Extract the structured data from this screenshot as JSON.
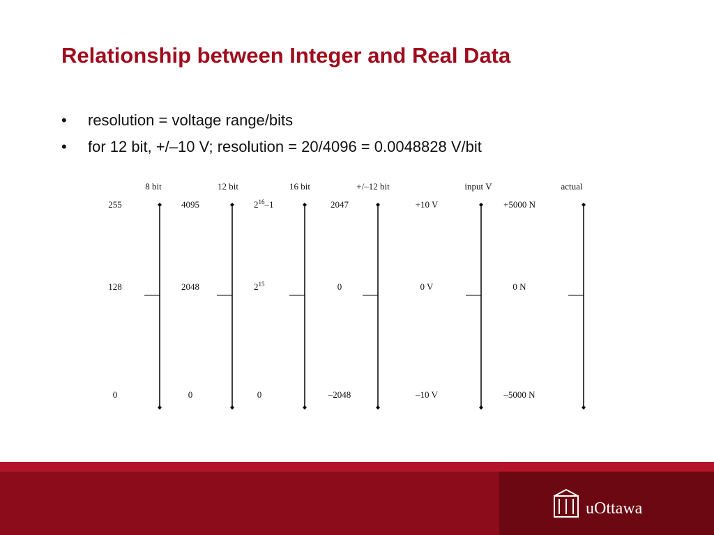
{
  "title": "Relationship between Integer and Real Data",
  "bullets": [
    "resolution = voltage range/bits",
    "for 12 bit, +/–10 V; resolution = 20/4096 = 0.0048828 V/bit"
  ],
  "diagram": {
    "columns": [
      {
        "header": "8 bit",
        "top": "255",
        "mid": "128",
        "bottom": "0"
      },
      {
        "header": "12 bit",
        "top": "4095",
        "mid": "2048",
        "bottom": "0"
      },
      {
        "header": "16 bit",
        "top": {
          "base": "2",
          "sup": "16",
          "rest": "–1"
        },
        "mid": {
          "base": "2",
          "sup": "15"
        },
        "bottom": "0"
      },
      {
        "header": "+/–12 bit",
        "top": "2047",
        "mid": "0",
        "bottom": "–2048"
      },
      {
        "header": "input V",
        "top": "+10 V",
        "mid": "0 V",
        "bottom": "–10 V"
      },
      {
        "header": "actual",
        "top": "+5000 N",
        "mid": "0 N",
        "bottom": "–5000 N"
      }
    ]
  },
  "footer": {
    "logo": "uOttawa"
  }
}
